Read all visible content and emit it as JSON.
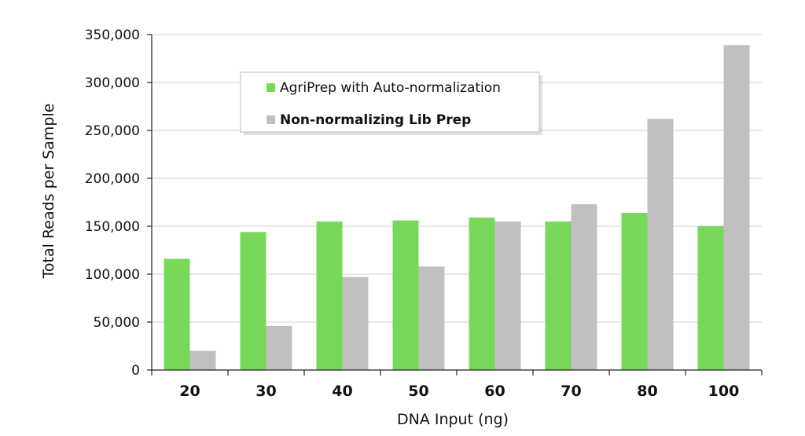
{
  "chart_data": {
    "type": "bar",
    "title": "",
    "xlabel": "DNA Input (ng)",
    "ylabel": "Total Reads per Sample",
    "categories": [
      "20",
      "30",
      "40",
      "50",
      "60",
      "70",
      "80",
      "100"
    ],
    "ylim": [
      0,
      350000
    ],
    "yticks": [
      0,
      50000,
      100000,
      150000,
      200000,
      250000,
      300000,
      350000
    ],
    "ytick_labels": [
      "0",
      "50,000",
      "100,000",
      "150,000",
      "200,000",
      "250,000",
      "300,000",
      "350,000"
    ],
    "grid": true,
    "legend_position": "top-left",
    "series": [
      {
        "name": "AgriPrep with Auto-normalization",
        "color": "#77d859",
        "values": [
          116000,
          144000,
          155000,
          156000,
          159000,
          155000,
          164000,
          150000
        ]
      },
      {
        "name": "Non-normalizing Lib Prep",
        "color": "#c0c0c0",
        "values": [
          20000,
          46000,
          97000,
          108000,
          155000,
          173000,
          262000,
          339000
        ]
      }
    ]
  }
}
